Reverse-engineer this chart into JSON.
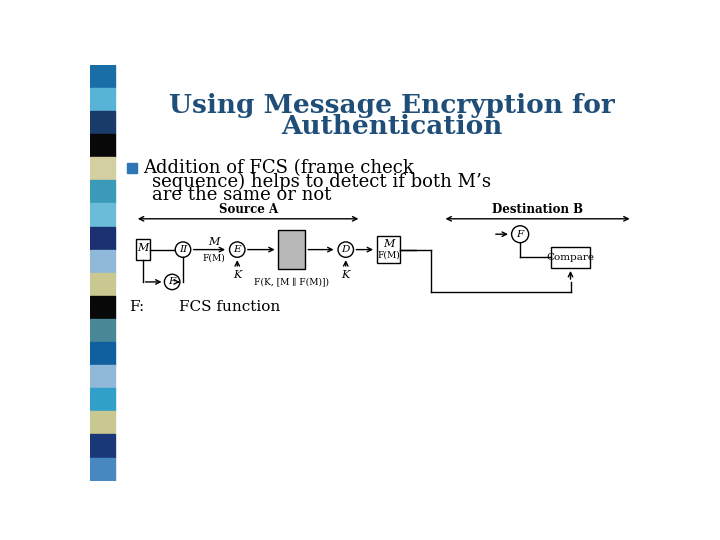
{
  "title_line1": "Using Message Encryption for",
  "title_line2": "Authentication",
  "title_color": "#1F4E79",
  "bullet_text_line1": "Addition of FCS (frame check",
  "bullet_text_line2": "sequence) helps to detect if both M’s",
  "bullet_text_line3": "are the same or not",
  "bullet_square_color": "#2E75B6",
  "footer_f": "F:",
  "footer_desc": "FCS function",
  "bg_color": "#FFFFFF",
  "sidebar_colors": [
    "#1a6ea8",
    "#58b4d6",
    "#1a3a6a",
    "#080808",
    "#d4cfa0",
    "#3a9ab8",
    "#6abcd8",
    "#1a3070",
    "#90b8d8",
    "#c8c890",
    "#080808",
    "#4a8898",
    "#1060a0",
    "#90b8d8",
    "#30a0c8",
    "#c8c890",
    "#1a3878",
    "#4888c0"
  ],
  "source_label": "Source A",
  "dest_label": "Destination B",
  "cipher_label": "F(K, [M ∥ F(M)])"
}
